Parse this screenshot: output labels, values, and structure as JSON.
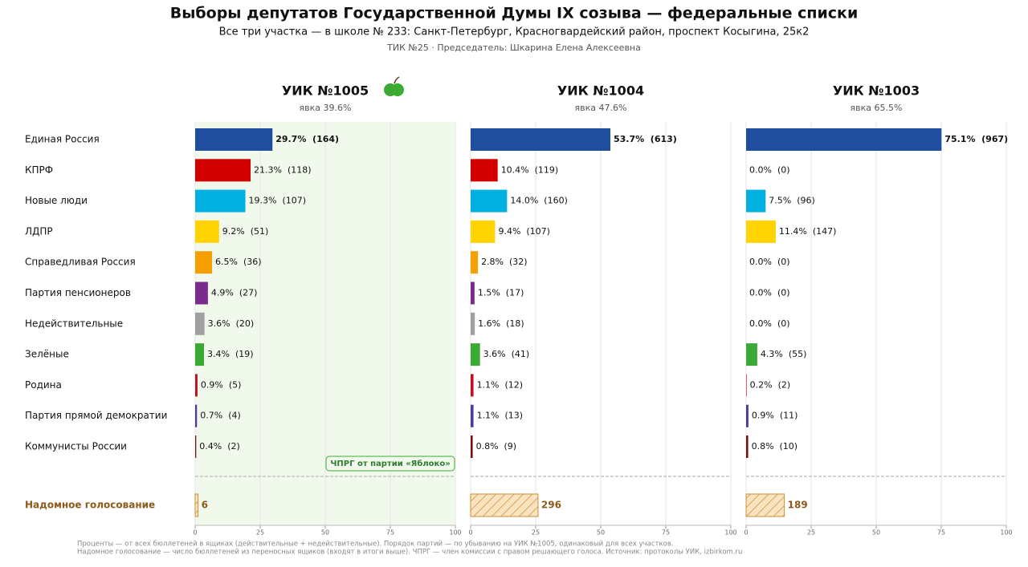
{
  "chart_data": {
    "type": "bar",
    "title": "Выборы депутатов Государственной Думы IX созыва — федеральные списки",
    "subtitle": "Все три участка — в школе № 233: Санкт-Петербург, Красногвардейский район, проспект Косыгина, 25к2",
    "note": "ТИК №25 · Председатель: Шкарина Елена Алексеевна",
    "categories": [
      "Единая Россия",
      "КПРФ",
      "Новые люди",
      "ЛДПР",
      "Справедливая Россия",
      "Партия пенсионеров",
      "Недействительные",
      "Зелёные",
      "Родина",
      "Партия прямой демократии",
      "Коммунисты России"
    ],
    "colors": [
      "#1f4e9e",
      "#d40000",
      "#00b0e0",
      "#ffd400",
      "#f5a000",
      "#7b2a8e",
      "#a0a0a0",
      "#3aaa35",
      "#c01020",
      "#4b3aa0",
      "#7a1010"
    ],
    "xlim": [
      0,
      100
    ],
    "xticks": [
      0,
      25,
      50,
      75,
      100
    ],
    "panels": [
      {
        "title": "УИК №1005",
        "subtitle": "явка 39.6%",
        "values": [
          29.7,
          21.3,
          19.3,
          9.2,
          6.5,
          4.9,
          3.6,
          3.4,
          0.9,
          0.7,
          0.4
        ],
        "value_labels": [
          "29.7%  (164)",
          "21.3%  (118)",
          "19.3%  (107)",
          "9.2%  (51)",
          "6.5%  (36)",
          "4.9%  (27)",
          "3.6%  (20)",
          "3.4%  (19)",
          "0.9%  (5)",
          "0.7%  (4)",
          "0.4%  (2)"
        ],
        "annotation": "ЧПРГ от партии «Яблоко»"
      },
      {
        "title": "УИК №1004",
        "subtitle": "явка 47.6%",
        "values": [
          53.7,
          10.4,
          14.0,
          9.4,
          2.8,
          1.5,
          1.6,
          3.6,
          1.1,
          1.1,
          0.8
        ],
        "value_labels": [
          "53.7%  (613)",
          "10.4%  (119)",
          "14.0%  (160)",
          "9.4%  (107)",
          "2.8%  (32)",
          "1.5%  (17)",
          "1.6%  (18)",
          "3.6%  (41)",
          "1.1%  (12)",
          "1.1%  (13)",
          "0.8%  (9)"
        ]
      },
      {
        "title": "УИК №1003",
        "subtitle": "явка 65.5%",
        "values": [
          75.1,
          0.0,
          7.5,
          11.4,
          0.0,
          0.0,
          0.0,
          4.3,
          0.2,
          0.9,
          0.8
        ],
        "value_labels": [
          "75.1%  (967)",
          "0.0%  (0)",
          "7.5%  (96)",
          "11.4%  (147)",
          "0.0%  (0)",
          "0.0%  (0)",
          "0.0%  (0)",
          "4.3%  (55)",
          "0.2%  (2)",
          "0.9%  (11)",
          "0.8%  (10)"
        ]
      }
    ],
    "home_voting": {
      "label": "Надомное голосование",
      "values": [
        1.1,
        25.9,
        14.7
      ],
      "value_labels": [
        "6",
        "296",
        "189"
      ]
    },
    "footnotes": [
      "Проценты — от всех бюллетеней в ящиках (действительные + недействительные). Порядок партий — по убыванию на УИК №1005, одинаковый для всех участков.",
      "Надомное голосование — число бюллетеней из переносных ящиков (входят в итоги выше). ЧПРГ — член комиссии с правом решающего голоса. Источник: протоколы УИК, izbirkom.ru"
    ]
  }
}
